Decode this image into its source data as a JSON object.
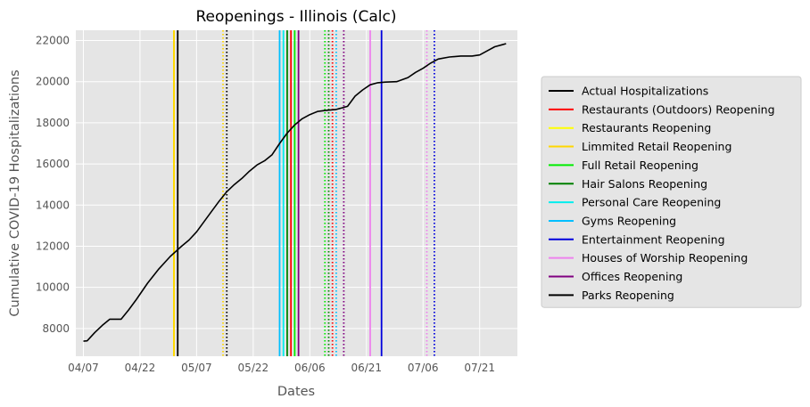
{
  "chart_data": {
    "type": "line",
    "title": "Reopenings - Illinois (Calc)",
    "xlabel": "Dates",
    "ylabel": "Cumulative COVID-19 Hospitalizations",
    "x_tick_labels": [
      "04/07",
      "04/22",
      "05/07",
      "05/22",
      "06/06",
      "06/21",
      "07/06",
      "07/21"
    ],
    "y_ticks": [
      8000,
      10000,
      12000,
      14000,
      16000,
      18000,
      20000,
      22000
    ],
    "x_range_days": [
      -2,
      115
    ],
    "x_date_range": [
      "04/05",
      "07/31"
    ],
    "ylim": [
      6650,
      22500
    ],
    "grid": true,
    "legend_position": "right",
    "series": [
      {
        "name": "Actual Hospitalizations",
        "color": "#000000",
        "x_dates": [
          "04/07",
          "04/08",
          "04/10",
          "04/12",
          "04/14",
          "04/15",
          "04/17",
          "04/19",
          "04/21",
          "04/24",
          "04/27",
          "04/30",
          "05/03",
          "05/05",
          "05/07",
          "05/09",
          "05/11",
          "05/13",
          "05/15",
          "05/17",
          "05/19",
          "05/21",
          "05/23",
          "05/25",
          "05/27",
          "05/29",
          "05/31",
          "06/02",
          "06/04",
          "06/06",
          "06/08",
          "06/10",
          "06/13",
          "06/16",
          "06/18",
          "06/20",
          "06/22",
          "06/24",
          "06/26",
          "06/29",
          "07/02",
          "07/04",
          "07/06",
          "07/08",
          "07/10",
          "07/13",
          "07/16",
          "07/19",
          "07/21",
          "07/23",
          "07/25",
          "07/27",
          "07/28"
        ],
        "y": [
          7380,
          7400,
          7800,
          8150,
          8450,
          8450,
          8450,
          8900,
          9400,
          10200,
          10900,
          11500,
          12000,
          12300,
          12700,
          13200,
          13700,
          14200,
          14650,
          15000,
          15300,
          15650,
          15950,
          16150,
          16450,
          17000,
          17500,
          17900,
          18200,
          18400,
          18550,
          18600,
          18650,
          18800,
          19300,
          19600,
          19850,
          19950,
          19980,
          20000,
          20200,
          20450,
          20650,
          20900,
          21100,
          21200,
          21250,
          21250,
          21300,
          21500,
          21700,
          21800,
          21850
        ]
      }
    ],
    "reopenings": [
      {
        "name": "Restaurants (Outdoors) Reopening",
        "color": "#ff0000",
        "date": "06/01",
        "style": "solid"
      },
      {
        "name": "Restaurants Reopening",
        "color": "#ffff00",
        "date": "05/01",
        "style": "solid"
      },
      {
        "name": "Limmited Retail Reopening",
        "color": "#ffd700",
        "date": "05/01",
        "style": "solid"
      },
      {
        "name": "Full Retail Reopening",
        "color": "#00ee00",
        "date": "06/02",
        "style": "solid"
      },
      {
        "name": "Hair Salons Reopening",
        "color": "#008000",
        "date": "05/31",
        "style": "solid"
      },
      {
        "name": "Personal Care Reopening",
        "color": "#00eeee",
        "date": "05/30",
        "style": "solid"
      },
      {
        "name": "Gyms Reopening",
        "color": "#00bfff",
        "date": "05/29",
        "style": "solid"
      },
      {
        "name": "Entertainment Reopening",
        "color": "#0000dd",
        "date": "06/25",
        "style": "solid"
      },
      {
        "name": "Houses of Worship Reopening",
        "color": "#ee82ee",
        "date": "06/22",
        "style": "solid"
      },
      {
        "name": "Offices Reopening",
        "color": "#800080",
        "date": "06/03",
        "style": "solid"
      },
      {
        "name": "Parks Reopening",
        "color": "#000000",
        "date": "05/02",
        "style": "solid"
      }
    ],
    "projected_reopenings": [
      {
        "color": "#ffd700",
        "date": "05/14"
      },
      {
        "color": "#000000",
        "date": "05/15"
      },
      {
        "color": "#00ee00",
        "date": "06/10"
      },
      {
        "color": "#008000",
        "date": "06/11"
      },
      {
        "color": "#ff0000",
        "date": "06/12"
      },
      {
        "color": "#00bfff",
        "date": "06/13"
      },
      {
        "color": "#800080",
        "date": "06/15"
      },
      {
        "color": "#ee82ee",
        "date": "07/07"
      },
      {
        "color": "#0000dd",
        "date": "07/09"
      }
    ],
    "legend": [
      {
        "label": "Actual Hospitalizations",
        "color": "#000000"
      },
      {
        "label": "Restaurants (Outdoors) Reopening",
        "color": "#ff0000"
      },
      {
        "label": "Restaurants Reopening",
        "color": "#ffff00"
      },
      {
        "label": "Limmited Retail Reopening",
        "color": "#ffd700"
      },
      {
        "label": "Full Retail Reopening",
        "color": "#00ee00"
      },
      {
        "label": "Hair Salons Reopening",
        "color": "#008000"
      },
      {
        "label": "Personal Care Reopening",
        "color": "#00eeee"
      },
      {
        "label": "Gyms Reopening",
        "color": "#00bfff"
      },
      {
        "label": "Entertainment Reopening",
        "color": "#0000dd"
      },
      {
        "label": "Houses of Worship Reopening",
        "color": "#ee82ee"
      },
      {
        "label": "Offices Reopening",
        "color": "#800080"
      },
      {
        "label": "Parks Reopening",
        "color": "#000000"
      }
    ],
    "style": {
      "plot_background": "#e5e5e5",
      "grid_color": "#ffffff",
      "legend_background": "#e5e5e5"
    }
  }
}
